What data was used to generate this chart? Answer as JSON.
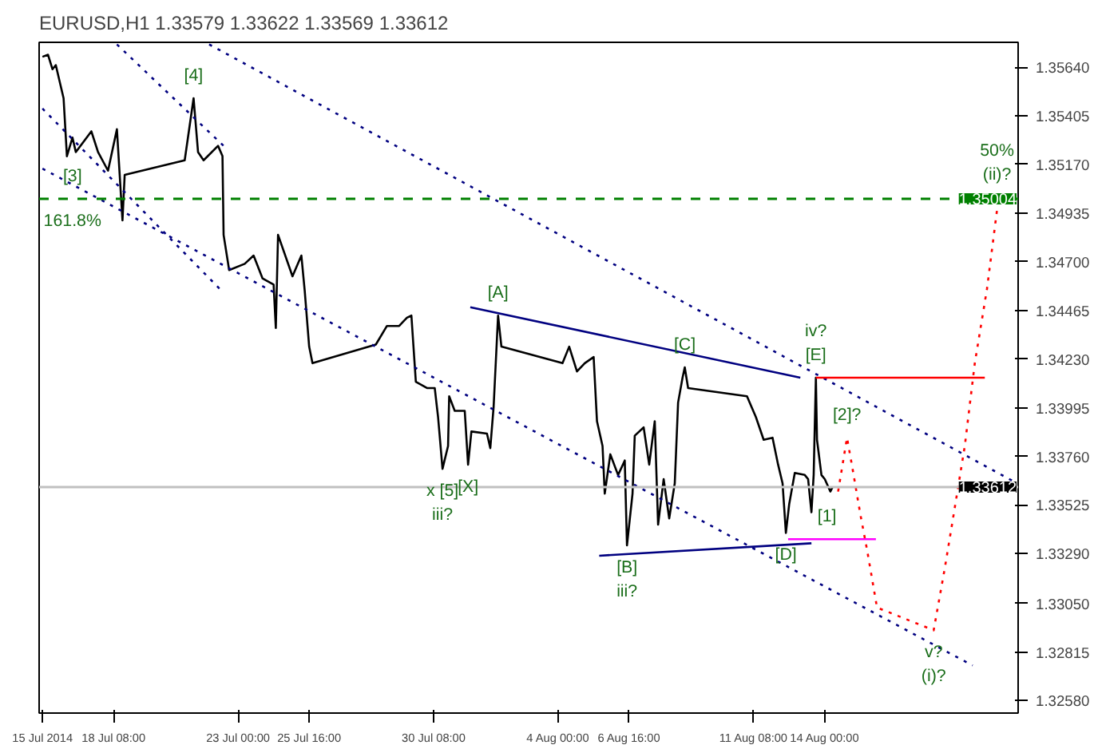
{
  "chart_data": {
    "type": "line",
    "title": "EURUSD,H1 1.33579 1.33622 1.33569 1.33612",
    "xlim": [
      "2014-07-15T13:00",
      "2014-08-21T06:00"
    ],
    "ylim": [
      1.3252,
      1.3576
    ],
    "xticks": [
      {
        "value": "2014-07-15T16:00",
        "label": "15 Jul 2014"
      },
      {
        "value": "2014-07-18T08:00",
        "label": "18 Jul 08:00"
      },
      {
        "value": "2014-07-23T00:00",
        "label": "23 Jul 00:00"
      },
      {
        "value": "2014-07-25T16:00",
        "label": "25 Jul 16:00"
      },
      {
        "value": "2014-07-30T08:00",
        "label": "30 Jul 08:00"
      },
      {
        "value": "2014-08-04T00:00",
        "label": "4 Aug 00:00"
      },
      {
        "value": "2014-08-06T16:00",
        "label": "6 Aug 16:00"
      },
      {
        "value": "2014-08-11T08:00",
        "label": "11 Aug 08:00"
      },
      {
        "value": "2014-08-14T00:00",
        "label": "14 Aug 00:00"
      }
    ],
    "yticks": [
      {
        "value": 1.3564,
        "label": "1.35640"
      },
      {
        "value": 1.35405,
        "label": "1.35405"
      },
      {
        "value": 1.3517,
        "label": "1.35170"
      },
      {
        "value": 1.34935,
        "label": "1.34935"
      },
      {
        "value": 1.347,
        "label": "1.34700"
      },
      {
        "value": 1.34465,
        "label": "1.34465"
      },
      {
        "value": 1.3423,
        "label": "1.34230"
      },
      {
        "value": 1.33995,
        "label": "1.33995"
      },
      {
        "value": 1.3376,
        "label": "1.33760"
      },
      {
        "value": 1.33525,
        "label": "1.33525"
      },
      {
        "value": 1.3329,
        "label": "1.33290"
      },
      {
        "value": 1.3305,
        "label": "1.33050"
      },
      {
        "value": 1.32815,
        "label": "1.32815"
      },
      {
        "value": 1.3258,
        "label": "1.32580"
      }
    ],
    "grid": false,
    "series": [
      {
        "color": "#000000",
        "line_style": "solid",
        "x": [
          "2014-07-15T16:00",
          "2014-07-15T21:00",
          "2014-07-16T01:00",
          "2014-07-16T04:00",
          "2014-07-16T11:00",
          "2014-07-16T14:00",
          "2014-07-16T19:00",
          "2014-07-16T22:00",
          "2014-07-17T12:00",
          "2014-07-17T18:00",
          "2014-07-18T03:00",
          "2014-07-18T11:00",
          "2014-07-18T16:00",
          "2014-07-18T18:00",
          "2014-07-21T00:00",
          "2014-07-21T08:00",
          "2014-07-21T12:00",
          "2014-07-21T17:00",
          "2014-07-22T06:00",
          "2014-07-22T10:00",
          "2014-07-22T11:00",
          "2014-07-22T16:00",
          "2014-07-23T06:00",
          "2014-07-23T14:00",
          "2014-07-23T22:00",
          "2014-07-24T08:00",
          "2014-07-24T10:00",
          "2014-07-24T12:00",
          "2014-07-25T01:00",
          "2014-07-25T09:00",
          "2014-07-25T12:00",
          "2014-07-25T16:00",
          "2014-07-25T19:00",
          "2014-07-28T04:00",
          "2014-07-28T14:00",
          "2014-07-29T01:00",
          "2014-07-29T08:00",
          "2014-07-29T12:00",
          "2014-07-29T16:00",
          "2014-07-30T02:00",
          "2014-07-30T09:00",
          "2014-07-30T12:00",
          "2014-07-30T16:00",
          "2014-07-30T21:00",
          "2014-07-30T22:00",
          "2014-07-31T03:00",
          "2014-07-31T12:00",
          "2014-07-31T15:00",
          "2014-07-31T18:00",
          "2014-08-01T08:00",
          "2014-08-01T11:00",
          "2014-08-01T14:00",
          "2014-08-01T18:00",
          "2014-08-01T21:00",
          "2014-08-04T04:00",
          "2014-08-04T10:00",
          "2014-08-04T17:00",
          "2014-08-05T00:00",
          "2014-08-05T08:00",
          "2014-08-05T11:00",
          "2014-08-05T16:00",
          "2014-08-05T18:00",
          "2014-08-05T23:00",
          "2014-08-06T06:00",
          "2014-08-06T12:00",
          "2014-08-06T14:00",
          "2014-08-06T19:00",
          "2014-08-06T21:00",
          "2014-08-07T05:00",
          "2014-08-07T10:00",
          "2014-08-07T15:00",
          "2014-08-07T18:00",
          "2014-08-07T23:00",
          "2014-08-08T04:00",
          "2014-08-08T09:00",
          "2014-08-08T12:00",
          "2014-08-08T16:00",
          "2014-08-08T18:00",
          "2014-08-08T21:00",
          "2014-08-11T02:00",
          "2014-08-11T10:00",
          "2014-08-11T17:00",
          "2014-08-12T01:00",
          "2014-08-12T06:00",
          "2014-08-12T10:00",
          "2014-08-12T13:00",
          "2014-08-12T16:00",
          "2014-08-12T21:00",
          "2014-08-13T06:00",
          "2014-08-13T09:00",
          "2014-08-13T12:00",
          "2014-08-13T14:00",
          "2014-08-13T16:00",
          "2014-08-13T17:00",
          "2014-08-13T21:00",
          "2014-08-14T00:00",
          "2014-08-14T05:00",
          "2014-08-14T07:00"
        ],
        "values": [
          1.3569,
          1.357,
          1.3563,
          1.3565,
          1.3549,
          1.3521,
          1.353,
          1.3523,
          1.3533,
          1.3523,
          1.3514,
          1.3534,
          1.349,
          1.3512,
          1.3519,
          1.3549,
          1.3523,
          1.3519,
          1.3526,
          1.3521,
          1.3483,
          1.3466,
          1.3469,
          1.3473,
          1.3462,
          1.3459,
          1.3438,
          1.3483,
          1.3463,
          1.3473,
          1.3456,
          1.3429,
          1.3421,
          1.343,
          1.3439,
          1.3439,
          1.3443,
          1.3444,
          1.3412,
          1.3409,
          1.3409,
          1.3395,
          1.337,
          1.3381,
          1.3405,
          1.3398,
          1.3398,
          1.3372,
          1.3388,
          1.3387,
          1.338,
          1.34,
          1.3444,
          1.3429,
          1.3421,
          1.3429,
          1.3417,
          1.3421,
          1.3424,
          1.3393,
          1.3381,
          1.3358,
          1.3377,
          1.3367,
          1.3374,
          1.3333,
          1.3358,
          1.3386,
          1.339,
          1.3372,
          1.3393,
          1.3343,
          1.3365,
          1.3346,
          1.3363,
          1.3402,
          1.3414,
          1.3419,
          1.3409,
          1.3405,
          1.3395,
          1.3384,
          1.3385,
          1.3372,
          1.3363,
          1.3339,
          1.3353,
          1.3368,
          1.3367,
          1.3365,
          1.3349,
          1.3367,
          1.3414,
          1.3384,
          1.3367,
          1.3365,
          1.3359,
          1.33612
        ]
      },
      {
        "color": "#000080",
        "line_style": "dotted",
        "x": [
          "2014-07-21T22:00",
          "2014-08-21T05:00"
        ],
        "values": [
          1.3575,
          1.3363
        ]
      },
      {
        "color": "#000080",
        "line_style": "dotted",
        "x": [
          "2014-07-15T16:00",
          "2014-08-19T13:00"
        ],
        "values": [
          1.3515,
          1.3275
        ]
      },
      {
        "color": "#000080",
        "line_style": "dotted",
        "x": [
          "2014-07-15T16:00",
          "2014-07-22T11:00"
        ],
        "values": [
          1.3544,
          1.3455
        ]
      },
      {
        "color": "#000080",
        "line_style": "dotted",
        "x": [
          "2014-07-18T11:00",
          "2014-07-22T11:00"
        ],
        "values": [
          1.3575,
          1.3526
        ]
      },
      {
        "color": "#000080",
        "line_style": "solid",
        "x": [
          "2014-07-31T17:00",
          "2014-08-13T02:00"
        ],
        "values": [
          1.3448,
          1.3414
        ]
      },
      {
        "color": "#000080",
        "line_style": "solid",
        "x": [
          "2014-08-05T13:00",
          "2014-08-13T12:00"
        ],
        "values": [
          1.3328,
          1.3334
        ]
      },
      {
        "color": "#ff0000",
        "line_style": "solid",
        "x": [
          "2014-08-13T16:00",
          "2014-08-20T00:00"
        ],
        "values": [
          1.3414,
          1.3414
        ]
      },
      {
        "color": "#ff00ff",
        "line_style": "solid",
        "x": [
          "2014-08-12T15:00",
          "2014-08-15T22:00"
        ],
        "values": [
          1.3336,
          1.3336
        ]
      },
      {
        "color": "#ff0000",
        "line_style": "dotted",
        "x": [
          "2014-08-14T12:00",
          "2014-08-14T20:00",
          "2014-08-15T01:00",
          "2014-08-15T08:00",
          "2014-08-15T14:00",
          "2014-08-15T23:00",
          "2014-08-18T02:00",
          "2014-08-18T12:00",
          "2014-08-18T20:00",
          "2014-08-19T06:00",
          "2014-08-19T15:00",
          "2014-08-20T02:00",
          "2014-08-20T11:00"
        ],
        "values": [
          1.3359,
          1.3385,
          1.337,
          1.3348,
          1.3331,
          1.3303,
          1.3292,
          1.3322,
          1.3348,
          1.3381,
          1.3421,
          1.3457,
          1.3495
        ]
      }
    ],
    "ref_lines": [
      {
        "axis": "y",
        "value": 1.35004,
        "label": "1.35004",
        "color": "#008000",
        "line_style": "dashed"
      },
      {
        "axis": "y",
        "value": 1.33612,
        "label": "1.33612",
        "color": "#c0c0c0",
        "line_style": "solid"
      }
    ],
    "annotations": [
      {
        "text": "[4]",
        "x": "2014-07-21T08:00",
        "y": 1.3549
      },
      {
        "text": "[3]",
        "x": "2014-07-16T19:00",
        "y": 1.35004
      },
      {
        "text": "161.8%",
        "x": "2014-07-16T19:00",
        "y": 1.35004
      },
      {
        "text": "[A]",
        "x": "2014-08-01T18:00",
        "y": 1.3444
      },
      {
        "text": "[C]",
        "x": "2014-08-08T18:00",
        "y": 1.3419
      },
      {
        "text": "[E]",
        "x": "2014-08-13T16:00",
        "y": 1.3414
      },
      {
        "text": "iv?",
        "x": "2014-08-13T16:00",
        "y": 1.3414
      },
      {
        "text": "[2]?",
        "x": "2014-08-14T20:00",
        "y": 1.3385
      },
      {
        "text": "[1]",
        "x": "2014-08-14T02:00",
        "y": 1.3336
      },
      {
        "text": "[D]",
        "x": "2014-08-12T13:00",
        "y": 1.3339
      },
      {
        "text": "[B]",
        "x": "2014-08-06T14:00",
        "y": 1.3333
      },
      {
        "text": "iii?",
        "x": "2014-08-06T14:00",
        "y": 1.3333
      },
      {
        "text": "x [5]",
        "x": "2014-07-30T16:00",
        "y": 1.337
      },
      {
        "text": "iii?",
        "x": "2014-07-30T16:00",
        "y": 1.337
      },
      {
        "text": "[X]",
        "x": "2014-07-31T15:00",
        "y": 1.3372
      },
      {
        "text": "v?",
        "x": "2014-08-18T02:00",
        "y": 1.3292
      },
      {
        "text": "(i)?",
        "x": "2014-08-18T02:00",
        "y": 1.3292
      },
      {
        "text": "(ii)?",
        "x": "2014-08-20T11:00",
        "y": 1.3495
      },
      {
        "text": "50%",
        "x": "2014-08-20T11:00",
        "y": 1.3495
      }
    ]
  }
}
